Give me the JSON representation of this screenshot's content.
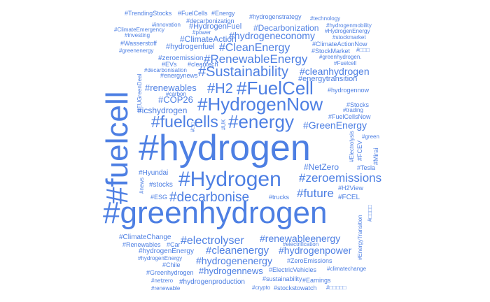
{
  "color": "#4d7fe3",
  "words": [
    "#hydrogen",
    "#greenhydrogen",
    "#fuelcell",
    "#Hydrogen",
    "#HydrogenNow",
    "#FuelCell",
    "#energy",
    "#fuelcells",
    "#Sustainability",
    "#H2",
    "#RenewableEnergy",
    "#CleanEnergy",
    "#hydrogeneconomy",
    "#zeroemissions",
    "#future",
    "#decarbonise",
    "#GreenEnergy",
    "#cleanhydrogen",
    "#renewableenergy",
    "#electrolyser",
    "#cleanenergy",
    "#hydrogenpower",
    "#hydrogenenergy",
    "#hydrogennews",
    "#renewables",
    "#COP26",
    "#icshydrogen",
    "#ClimateAction",
    "#Decarbonization",
    "#HydrogenFuel",
    "#hydrogenfuel",
    "#energytransition",
    "#NetZero",
    "#hydrogennow",
    "#Hyundai",
    "#stocks",
    "#ESG",
    "#trucks",
    "#FCEL",
    "#H2View",
    "#Tesla",
    "#Mirai",
    "#green",
    "#Stocks",
    "#trading",
    "#FuelCellsNow",
    "#greenhydrogen.",
    "#Fuelcell",
    "#StockMarket",
    "#ClimateActionNow",
    "#stockmarket",
    "#HydrogenEnergy",
    "#hydrogenmobility",
    "#hydrogenstrategy",
    "#technology",
    "#TrendingStocks",
    "#FuelCells",
    "#Energy",
    "#decarbonization",
    "#innovation",
    "#investing",
    "#ClimateEmergency",
    "#power",
    "#Wasserstoff",
    "#greenenergy",
    "#zeroemission",
    "#EVs",
    "#cleantech",
    "#decarbonisation",
    "#energynews",
    "#carbon",
    "#EUGreenDeal",
    "#UK",
    "#Electrolysis",
    "#FCEV",
    "#news",
    "#ClimateChange",
    "#Renewables",
    "#Car",
    "#electrification",
    "#hydrogenEnergy",
    "#Chile",
    "#ZeroEmissions",
    "#Greenhydrogen",
    "#ElectricVehicles",
    "#climatechange",
    "#netzero",
    "#hydrogenproduction",
    "#sustainability",
    "#Earnings",
    "#renewable",
    "#crypto",
    "#stockstowatch",
    "#EnergyTransition",
    "#□□□",
    "#□□",
    "#□□□□",
    "#□□□□□"
  ]
}
